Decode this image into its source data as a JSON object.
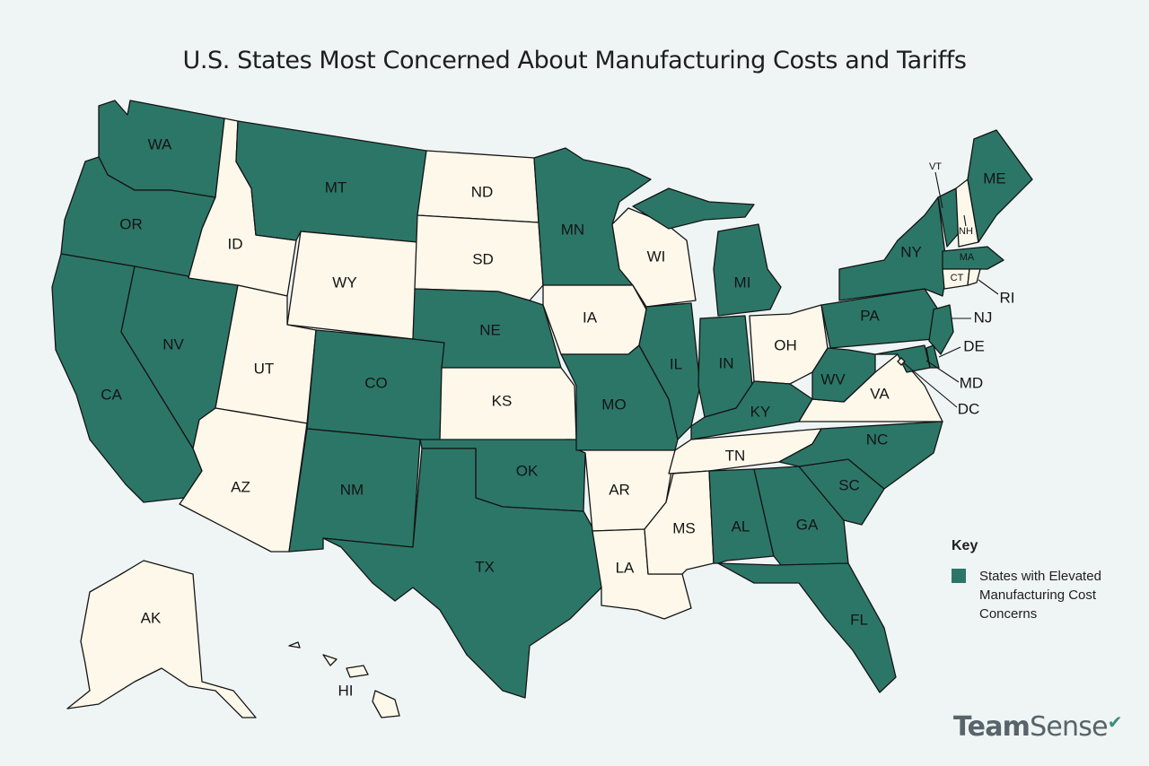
{
  "title": "U.S. States Most Concerned About Manufacturing Costs and Tariffs",
  "colors": {
    "elevated": "#2c7668",
    "other": "#fdf8ea",
    "background": "#eef5f4",
    "border": "#141414"
  },
  "key": {
    "title": "Key",
    "items": [
      {
        "label": "States with Elevated Manufacturing Cost Concerns",
        "color": "#2c7668"
      }
    ]
  },
  "brand": {
    "bold": "Team",
    "regular": "Sense"
  },
  "states": [
    {
      "code": "WA",
      "elevated": true
    },
    {
      "code": "OR",
      "elevated": true
    },
    {
      "code": "CA",
      "elevated": true
    },
    {
      "code": "NV",
      "elevated": true
    },
    {
      "code": "ID",
      "elevated": false
    },
    {
      "code": "MT",
      "elevated": true
    },
    {
      "code": "WY",
      "elevated": false
    },
    {
      "code": "UT",
      "elevated": false
    },
    {
      "code": "AZ",
      "elevated": false
    },
    {
      "code": "CO",
      "elevated": true
    },
    {
      "code": "NM",
      "elevated": true
    },
    {
      "code": "ND",
      "elevated": false
    },
    {
      "code": "SD",
      "elevated": false
    },
    {
      "code": "NE",
      "elevated": true
    },
    {
      "code": "KS",
      "elevated": false
    },
    {
      "code": "OK",
      "elevated": true
    },
    {
      "code": "TX",
      "elevated": true
    },
    {
      "code": "MN",
      "elevated": true
    },
    {
      "code": "IA",
      "elevated": false
    },
    {
      "code": "MO",
      "elevated": true
    },
    {
      "code": "AR",
      "elevated": false
    },
    {
      "code": "LA",
      "elevated": false
    },
    {
      "code": "WI",
      "elevated": false
    },
    {
      "code": "IL",
      "elevated": true
    },
    {
      "code": "MI",
      "elevated": true
    },
    {
      "code": "IN",
      "elevated": true
    },
    {
      "code": "OH",
      "elevated": false
    },
    {
      "code": "KY",
      "elevated": true
    },
    {
      "code": "TN",
      "elevated": false
    },
    {
      "code": "MS",
      "elevated": false
    },
    {
      "code": "AL",
      "elevated": true
    },
    {
      "code": "GA",
      "elevated": true
    },
    {
      "code": "FL",
      "elevated": true
    },
    {
      "code": "SC",
      "elevated": true
    },
    {
      "code": "NC",
      "elevated": true
    },
    {
      "code": "VA",
      "elevated": false
    },
    {
      "code": "WV",
      "elevated": true
    },
    {
      "code": "PA",
      "elevated": true
    },
    {
      "code": "NY",
      "elevated": true
    },
    {
      "code": "VT",
      "elevated": true
    },
    {
      "code": "NH",
      "elevated": false
    },
    {
      "code": "ME",
      "elevated": true
    },
    {
      "code": "MA",
      "elevated": true
    },
    {
      "code": "CT",
      "elevated": false
    },
    {
      "code": "RI",
      "elevated": false
    },
    {
      "code": "NJ",
      "elevated": true
    },
    {
      "code": "DE",
      "elevated": true
    },
    {
      "code": "MD",
      "elevated": true
    },
    {
      "code": "DC",
      "elevated": false
    },
    {
      "code": "AK",
      "elevated": false
    },
    {
      "code": "HI",
      "elevated": false
    }
  ]
}
